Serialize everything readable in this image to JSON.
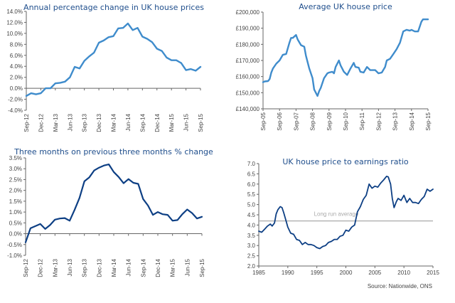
{
  "colors": {
    "light_blue": "#3f8ccc",
    "dark_blue": "#0d3f84",
    "title": "#1f4e8c",
    "avg_line": "#aaaaaa"
  },
  "source": "Source: Nationwide, ONS",
  "chart_data": [
    {
      "type": "line",
      "title": "Annual percentage change in UK house prices",
      "ylim": [
        -4,
        14
      ],
      "yticks": [
        -4,
        -2,
        0,
        2,
        4,
        6,
        8,
        10,
        12,
        14
      ],
      "ytick_labels": [
        "-4.0%",
        "-2.0%",
        "0.0%",
        "2.0%",
        "4.0%",
        "6.0%",
        "8.0%",
        "10.0%",
        "12.0%",
        "14.0%"
      ],
      "xtick_labels": [
        "Sep-12",
        "Dec-12",
        "Mar-13",
        "Jun-13",
        "Sep-13",
        "Dec-13",
        "Mar-14",
        "Jun-14",
        "Sep-14",
        "Dec-14",
        "Mar-15",
        "Jun-15",
        "Sep-15"
      ],
      "x_range": [
        0,
        36
      ],
      "zero_line": true,
      "color": "#3f8ccc",
      "x": [
        0,
        1,
        2,
        3,
        4,
        5,
        6,
        7,
        8,
        9,
        10,
        11,
        12,
        13,
        14,
        15,
        16,
        17,
        18,
        19,
        20,
        21,
        22,
        23,
        24,
        25,
        26,
        27,
        28,
        29,
        30,
        31,
        32,
        33,
        34,
        35,
        36
      ],
      "values": [
        -1.4,
        -0.9,
        -1.1,
        -0.9,
        0.0,
        0.0,
        0.9,
        1.0,
        1.2,
        2.0,
        3.9,
        3.6,
        5.0,
        5.8,
        6.5,
        8.3,
        8.7,
        9.3,
        9.5,
        10.9,
        11.0,
        11.8,
        10.6,
        11.0,
        9.4,
        9.0,
        8.4,
        7.2,
        6.8,
        5.6,
        5.1,
        5.1,
        4.6,
        3.3,
        3.5,
        3.2,
        3.9
      ]
    },
    {
      "type": "line",
      "title": "Average UK house price",
      "ylim": [
        140000,
        200000
      ],
      "yticks": [
        140000,
        150000,
        160000,
        170000,
        180000,
        190000,
        200000
      ],
      "ytick_labels": [
        "£140,000",
        "£150,000",
        "£160,000",
        "£170,000",
        "£180,000",
        "£190,000",
        "£200,000"
      ],
      "xtick_labels": [
        "Sep-05",
        "Sep-06",
        "Sep-07",
        "Sep-08",
        "Sep-09",
        "Sep-10",
        "Sep-11",
        "Sep-12",
        "Sep-13",
        "Sep-14",
        "Sep-15"
      ],
      "x_range": [
        0,
        10
      ],
      "color": "#3f8ccc",
      "x": [
        0,
        0.1,
        0.3,
        0.4,
        0.5,
        0.6,
        0.8,
        1.0,
        1.2,
        1.4,
        1.6,
        1.7,
        1.8,
        2.0,
        2.1,
        2.3,
        2.5,
        2.6,
        2.8,
        3.0,
        3.1,
        3.3,
        3.4,
        3.5,
        3.7,
        3.9,
        4.0,
        4.2,
        4.3,
        4.4,
        4.6,
        4.7,
        4.9,
        5.1,
        5.3,
        5.5,
        5.6,
        5.8,
        5.9,
        6.1,
        6.3,
        6.5,
        6.8,
        7.0,
        7.2,
        7.4,
        7.5,
        7.7,
        7.9,
        8.1,
        8.3,
        8.5,
        8.7,
        8.9,
        9.0,
        9.2,
        9.4,
        9.6,
        9.7,
        9.8,
        10.0
      ],
      "values": [
        156500,
        157000,
        157200,
        158500,
        162500,
        165000,
        168000,
        170000,
        173500,
        174000,
        181000,
        184000,
        184000,
        185800,
        183000,
        179500,
        178500,
        173000,
        165000,
        159000,
        152000,
        148000,
        151000,
        153000,
        159000,
        162000,
        162500,
        163000,
        162000,
        166000,
        170000,
        167000,
        163000,
        161000,
        165000,
        168500,
        166000,
        165500,
        163000,
        162500,
        166000,
        164000,
        164000,
        162000,
        162500,
        166000,
        170000,
        171000,
        174000,
        177000,
        181000,
        188000,
        189000,
        188500,
        189000,
        188000,
        188000,
        194000,
        195500,
        195500,
        195500
      ]
    },
    {
      "type": "line",
      "title": "Three months on previous three months % change",
      "ylim": [
        -1.0,
        3.5
      ],
      "yticks": [
        -1.0,
        -0.5,
        0.0,
        0.5,
        1.0,
        1.5,
        2.0,
        2.5,
        3.0,
        3.5
      ],
      "ytick_labels": [
        "-1.0%",
        "-0.5%",
        "0.0%",
        "0.5%",
        "1.0%",
        "1.5%",
        "2.0%",
        "2.5%",
        "3.0%",
        "3.5%"
      ],
      "xtick_labels": [
        "Sep-12",
        "Dec-12",
        "Mar-13",
        "Jun-13",
        "Sep-13",
        "Dec-13",
        "Mar-14",
        "Jun-14",
        "Sep-14",
        "Dec-14",
        "Mar-15",
        "Jun-15",
        "Sep-15"
      ],
      "x_range": [
        0,
        36
      ],
      "zero_line": true,
      "color": "#0d3f84",
      "x": [
        0,
        1,
        2,
        3,
        4,
        5,
        6,
        7,
        8,
        9,
        10,
        11,
        12,
        13,
        14,
        15,
        16,
        17,
        18,
        19,
        20,
        21,
        22,
        23,
        24,
        25,
        26,
        27,
        28,
        29,
        30,
        31,
        32,
        33,
        34,
        35,
        36
      ],
      "values": [
        -0.4,
        0.25,
        0.35,
        0.45,
        0.22,
        0.4,
        0.65,
        0.7,
        0.72,
        0.6,
        1.1,
        1.65,
        2.42,
        2.6,
        2.92,
        3.05,
        3.15,
        3.2,
        2.85,
        2.62,
        2.33,
        2.52,
        2.35,
        2.3,
        1.6,
        1.3,
        0.87,
        1.0,
        0.9,
        0.87,
        0.6,
        0.63,
        0.9,
        1.12,
        0.95,
        0.7,
        0.78
      ]
    },
    {
      "type": "line",
      "title": "UK house price to earnings ratio",
      "ylim": [
        2.0,
        7.0
      ],
      "yticks": [
        2.0,
        2.5,
        3.0,
        3.5,
        4.0,
        4.5,
        5.0,
        5.5,
        6.0,
        6.5,
        7.0
      ],
      "ytick_labels": [
        "2.0",
        "2.5",
        "3.0",
        "3.5",
        "4.0",
        "4.5",
        "5.0",
        "5.5",
        "6.0",
        "6.5",
        "7.0"
      ],
      "xtick_labels": [
        "1985",
        "1990",
        "1995",
        "2000",
        "2005",
        "2010",
        "2015"
      ],
      "xticks": [
        1985,
        1990,
        1995,
        2000,
        2005,
        2010,
        2015
      ],
      "x_range": [
        1985,
        2015
      ],
      "color": "#0d3f84",
      "reference_line": {
        "label": "Long run average",
        "value": 4.2
      },
      "x": [
        1985,
        1985.5,
        1986,
        1986.5,
        1987,
        1987.3,
        1987.7,
        1988,
        1988.3,
        1988.7,
        1989,
        1989.3,
        1989.7,
        1990,
        1990.5,
        1991,
        1991.5,
        1992,
        1992.5,
        1993,
        1993.5,
        1994,
        1994.5,
        1995,
        1995.5,
        1996,
        1996.5,
        1997,
        1997.5,
        1998,
        1998.5,
        1999,
        1999.5,
        2000,
        2000.5,
        2001,
        2001.5,
        2002,
        2002.5,
        2003,
        2003.5,
        2004,
        2004.5,
        2005,
        2005.5,
        2006,
        2006.5,
        2007,
        2007.3,
        2007.7,
        2008,
        2008.3,
        2008.7,
        2009,
        2009.5,
        2010,
        2010.5,
        2011,
        2011.5,
        2012,
        2012.5,
        2013,
        2013.5,
        2014,
        2014.5,
        2015
      ],
      "values": [
        3.7,
        3.65,
        3.8,
        3.95,
        4.05,
        3.95,
        4.1,
        4.55,
        4.75,
        4.9,
        4.85,
        4.6,
        4.2,
        3.9,
        3.6,
        3.55,
        3.3,
        3.25,
        3.05,
        3.15,
        3.05,
        3.05,
        3.0,
        2.9,
        2.85,
        2.95,
        3.0,
        3.15,
        3.2,
        3.3,
        3.3,
        3.45,
        3.5,
        3.75,
        3.7,
        3.9,
        4.0,
        4.65,
        4.9,
        5.25,
        5.45,
        6.0,
        5.8,
        5.9,
        5.85,
        6.05,
        6.2,
        6.38,
        6.35,
        6.0,
        5.3,
        4.85,
        5.15,
        5.3,
        5.2,
        5.45,
        5.1,
        5.3,
        5.1,
        5.1,
        5.05,
        5.25,
        5.4,
        5.75,
        5.65,
        5.75
      ]
    }
  ]
}
